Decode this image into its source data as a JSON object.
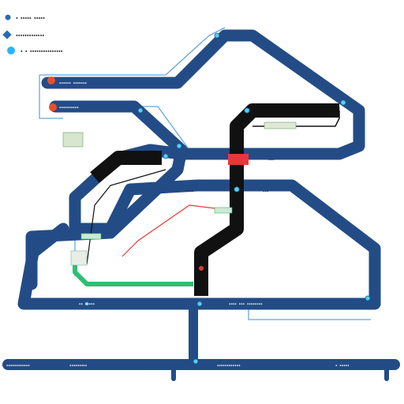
{
  "legend": [
    {
      "marker": "dot",
      "color": "#2b6cb0",
      "label": "ꞏ ꞏꞏꞏꞏꞏ ꞏꞏꞏꞏꞏ"
    },
    {
      "marker": "diamond",
      "color": "#2b6cb0",
      "label": "ꞏꞏꞏꞏꞏꞏꞏꞏꞏꞏꞏꞏꞏ"
    },
    {
      "marker": "ring",
      "color": "#29b6f6",
      "label": "ꞏ ꞏ ꞏꞏꞏꞏꞏꞏꞏꞏꞏꞏꞏꞏꞏꞏꞏ"
    }
  ],
  "colors": {
    "line_blue": "#234c86",
    "line_black": "#111111",
    "accent_red": "#e53935",
    "accent_green": "#2fbf71",
    "station_cyan": "#4fd1f5",
    "thin_blue": "#3a8fd6"
  },
  "station_labels": [],
  "bottom_labels": []
}
